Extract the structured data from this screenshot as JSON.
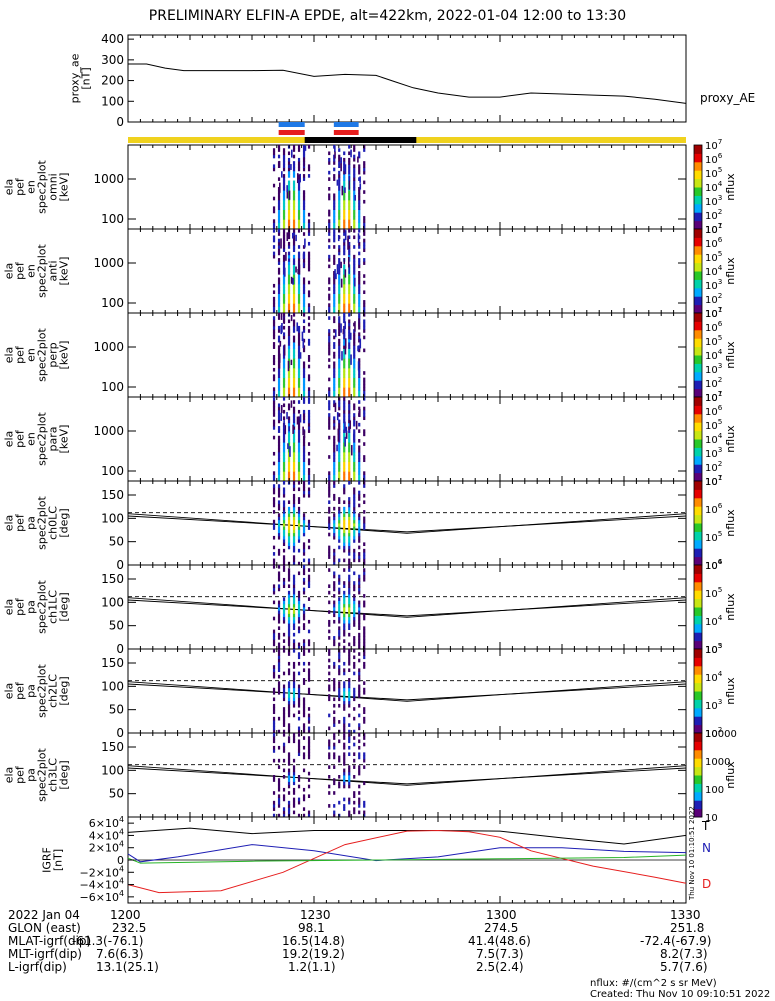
{
  "title": "PRELIMINARY ELFIN-A EPDE, alt=422km, 2022-01-04 12:00 to 13:30",
  "colors": {
    "yellow": "#f0d21e",
    "black": "#000000",
    "blue": "#1e78e6",
    "red": "#e61e1e",
    "green": "#28b428",
    "darkblue": "#1e1eb4"
  },
  "chart_data": [
    {
      "type": "line",
      "panel": "proxy_ae",
      "ylabel": [
        "proxy_ae",
        "[nT]"
      ],
      "series_label": "proxy_AE",
      "ylim": [
        0,
        420
      ],
      "yticks": [
        "0",
        "100",
        "200",
        "300",
        "400"
      ],
      "x_minutes": [
        0,
        3,
        6,
        9,
        12,
        15,
        20,
        25,
        30,
        35,
        40,
        43,
        46,
        50,
        55,
        60,
        65,
        70,
        75,
        80,
        85,
        90
      ],
      "values": [
        280,
        280,
        260,
        248,
        248,
        248,
        248,
        250,
        220,
        230,
        225,
        195,
        165,
        140,
        120,
        120,
        140,
        135,
        130,
        125,
        110,
        90
      ]
    },
    {
      "type": "heatmap",
      "panel": "spec2plot_omni",
      "ylabel": [
        "ela",
        "pef",
        "en",
        "spec2plot",
        "omni",
        "[keV]"
      ],
      "scale": "log",
      "yticks": [
        "100",
        "1000"
      ],
      "colorbar": {
        "label": "nflux",
        "ticks": [
          "10^1",
          "10^2",
          "10^3",
          "10^4",
          "10^5",
          "10^6",
          "10^7"
        ]
      }
    },
    {
      "type": "heatmap",
      "panel": "spec2plot_anti",
      "ylabel": [
        "ela",
        "pef",
        "en",
        "spec2plot",
        "anti",
        "[keV]"
      ],
      "scale": "log",
      "yticks": [
        "100",
        "1000"
      ],
      "colorbar": {
        "label": "nflux",
        "ticks": [
          "10^1",
          "10^2",
          "10^3",
          "10^4",
          "10^5",
          "10^6",
          "10^7"
        ]
      }
    },
    {
      "type": "heatmap",
      "panel": "spec2plot_perp",
      "ylabel": [
        "ela",
        "pef",
        "en",
        "spec2plot",
        "perp",
        "[keV]"
      ],
      "scale": "log",
      "yticks": [
        "100",
        "1000"
      ],
      "colorbar": {
        "label": "nflux",
        "ticks": [
          "10^1",
          "10^2",
          "10^3",
          "10^4",
          "10^5",
          "10^6",
          "10^7"
        ]
      }
    },
    {
      "type": "heatmap",
      "panel": "spec2plot_para",
      "ylabel": [
        "ela",
        "pef",
        "en",
        "spec2plot",
        "para",
        "[keV]"
      ],
      "scale": "log",
      "yticks": [
        "100",
        "1000"
      ],
      "colorbar": {
        "label": "nflux",
        "ticks": [
          "10^1",
          "10^2",
          "10^3",
          "10^4",
          "10^5",
          "10^6",
          "10^7"
        ]
      }
    },
    {
      "type": "heatmap",
      "panel": "spec2plot_ch0LC",
      "ylabel": [
        "ela",
        "pef",
        "pa",
        "spec2plot",
        "ch0LC",
        "[deg]"
      ],
      "ylim": [
        0,
        180
      ],
      "yticks": [
        "0",
        "50",
        "100",
        "150"
      ],
      "colorbar": {
        "label": "nflux",
        "ticks": [
          "10^4",
          "10^5",
          "10^6",
          "10^7"
        ]
      }
    },
    {
      "type": "heatmap",
      "panel": "spec2plot_ch1LC",
      "ylabel": [
        "ela",
        "pef",
        "pa",
        "spec2plot",
        "ch1LC",
        "[deg]"
      ],
      "ylim": [
        0,
        180
      ],
      "yticks": [
        "0",
        "50",
        "100",
        "150"
      ],
      "colorbar": {
        "label": "nflux",
        "ticks": [
          "10^3",
          "10^4",
          "10^5",
          "10^6"
        ]
      }
    },
    {
      "type": "heatmap",
      "panel": "spec2plot_ch2LC",
      "ylabel": [
        "ela",
        "pef",
        "pa",
        "spec2plot",
        "ch2LC",
        "[deg]"
      ],
      "ylim": [
        0,
        180
      ],
      "yticks": [
        "0",
        "50",
        "100",
        "150"
      ],
      "colorbar": {
        "label": "nflux",
        "ticks": [
          "10^2",
          "10^3",
          "10^4",
          "10^5"
        ]
      }
    },
    {
      "type": "heatmap",
      "panel": "spec2plot_ch3LC",
      "ylabel": [
        "ela",
        "pef",
        "pa",
        "spec2plot",
        "ch3LC",
        "[deg]"
      ],
      "ylim": [
        0,
        180
      ],
      "yticks": [
        "50",
        "100",
        "150"
      ],
      "colorbar": {
        "label": "nflux",
        "ticks": [
          "10",
          "100",
          "1000",
          "10000"
        ]
      }
    },
    {
      "type": "line",
      "panel": "IGRF",
      "ylabel": [
        "IGRF",
        "[nT]"
      ],
      "ylim": [
        -70000,
        70000
      ],
      "yticks": [
        "−6×10^4",
        "−4×10^4",
        "−2×10^4",
        "0",
        "2×10^4",
        "4×10^4",
        "6×10^4"
      ],
      "series": [
        {
          "name": "T",
          "color": "#000000",
          "x_minutes": [
            0,
            10,
            20,
            30,
            40,
            50,
            60,
            70,
            80,
            90
          ],
          "values": [
            45000,
            52000,
            43000,
            48000,
            48000,
            48000,
            47000,
            36000,
            26000,
            40000
          ]
        },
        {
          "name": "N",
          "color": "#1e1eb4",
          "x_minutes": [
            0,
            2,
            8,
            20,
            30,
            40,
            50,
            60,
            70,
            80,
            90
          ],
          "values": [
            10000,
            -3000,
            5000,
            25000,
            15000,
            -1000,
            5000,
            20000,
            20000,
            14000,
            12000
          ]
        },
        {
          "name": "D",
          "color": "#e61e1e",
          "x_minutes": [
            0,
            5,
            15,
            25,
            35,
            45,
            50,
            55,
            60,
            65,
            75,
            85,
            90
          ],
          "values": [
            -40000,
            -53000,
            -50000,
            -20000,
            25000,
            47000,
            48000,
            46000,
            37000,
            15000,
            -10000,
            -28000,
            -38000
          ]
        },
        {
          "name": "",
          "color": "#28b428",
          "x_minutes": [
            0,
            2,
            20,
            40,
            60,
            80,
            90
          ],
          "values": [
            3000,
            -5000,
            -2000,
            0,
            2000,
            4000,
            8000
          ]
        }
      ]
    }
  ],
  "ephemeris": {
    "date_label": "2022 Jan 04",
    "tick_times": [
      "1200",
      "1230",
      "1300",
      "1330"
    ],
    "rows": [
      {
        "label": "GLON (east)",
        "values": [
          "232.5",
          "98.1",
          "274.5",
          "251.8"
        ]
      },
      {
        "label": "MLAT-igrf(dip)",
        "values": [
          "-61.3(-76.1)",
          "16.5(14.8)",
          "41.4(48.6)",
          "-72.4(-67.9)"
        ]
      },
      {
        "label": "MLT-igrf(dip)",
        "values": [
          "7.6(6.3)",
          "19.2(19.2)",
          "7.5(7.3)",
          "8.2(7.3)"
        ]
      },
      {
        "label": "L-igrf(dip)",
        "values": [
          "13.1(25.1)",
          "1.2(1.1)",
          "2.5(2.4)",
          "5.7(7.6)"
        ]
      }
    ]
  },
  "footer": {
    "units": "nflux: #/(cm^2 s sr MeV)",
    "created": "Created: Thu Nov 10 09:10:51 2022",
    "side_stamp": "Thu Nov 10 01:10:51 2022"
  }
}
